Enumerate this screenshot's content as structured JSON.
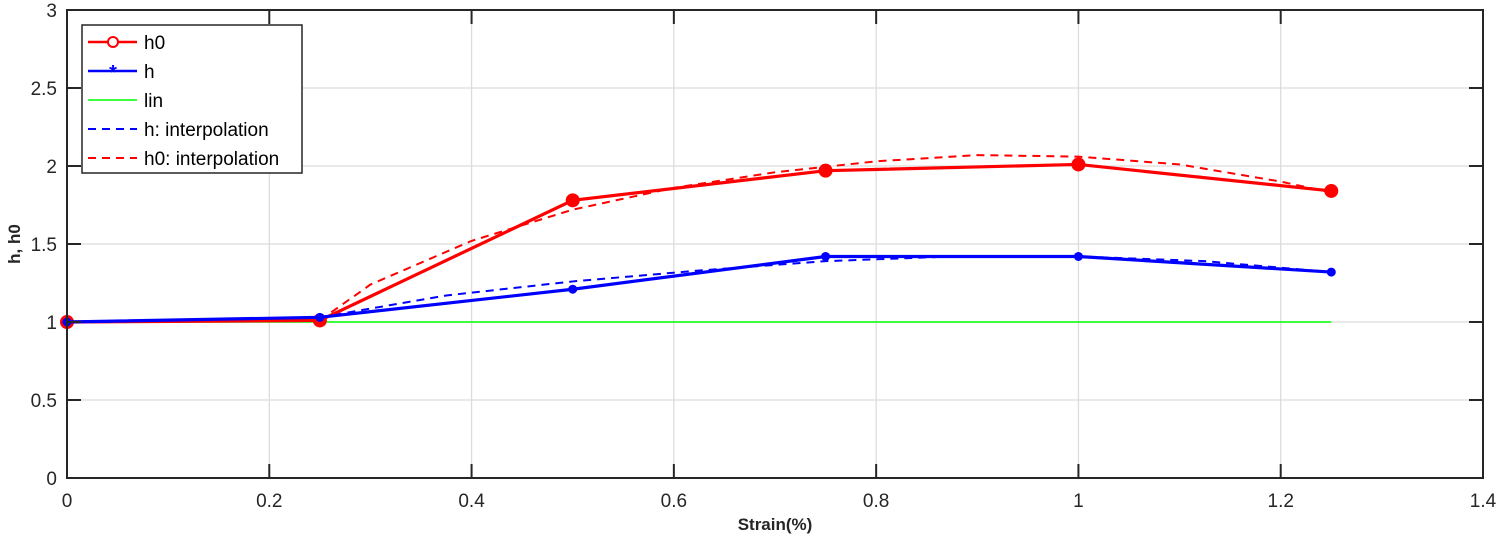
{
  "chart_data": {
    "type": "line",
    "title": "",
    "xlabel": "Strain(%)",
    "ylabel": "h, h0",
    "xlim": [
      0,
      1.4
    ],
    "ylim": [
      0,
      3
    ],
    "xticks": [
      "0",
      "0.2",
      "0.4",
      "0.6",
      "0.8",
      "1",
      "1.2",
      "1.4"
    ],
    "yticks": [
      "0",
      "0.5",
      "1",
      "1.5",
      "2",
      "2.5",
      "3"
    ],
    "grid": true,
    "legend_position": "upper-left",
    "series": [
      {
        "name": "h0",
        "color": "#ff0000",
        "style": "solid",
        "marker": "circle",
        "x": [
          0,
          0.25,
          0.5,
          0.75,
          1.0,
          1.25
        ],
        "y": [
          1.0,
          1.01,
          1.78,
          1.97,
          2.01,
          1.84
        ]
      },
      {
        "name": "h",
        "color": "#0000ff",
        "style": "solid",
        "marker": "asterisk",
        "x": [
          0,
          0.25,
          0.5,
          0.75,
          1.0,
          1.25
        ],
        "y": [
          1.0,
          1.03,
          1.21,
          1.42,
          1.42,
          1.32
        ]
      },
      {
        "name": "lin",
        "color": "#00ff00",
        "style": "solid",
        "marker": "none",
        "x": [
          0,
          1.25
        ],
        "y": [
          1.0,
          1.0
        ]
      },
      {
        "name": "h: interpolation",
        "color": "#0000ff",
        "style": "dashed",
        "marker": "none",
        "x": [
          0.25,
          0.375,
          0.5,
          0.625,
          0.75,
          0.875,
          1.0,
          1.125,
          1.25
        ],
        "y": [
          1.03,
          1.17,
          1.26,
          1.33,
          1.39,
          1.42,
          1.42,
          1.39,
          1.32
        ]
      },
      {
        "name": "h0: interpolation",
        "color": "#ff0000",
        "style": "dashed",
        "marker": "none",
        "x": [
          0.25,
          0.3,
          0.4,
          0.5,
          0.6,
          0.7,
          0.8,
          0.9,
          1.0,
          1.1,
          1.2,
          1.25
        ],
        "y": [
          1.01,
          1.24,
          1.52,
          1.72,
          1.86,
          1.96,
          2.03,
          2.07,
          2.06,
          2.01,
          1.9,
          1.83
        ]
      }
    ]
  }
}
